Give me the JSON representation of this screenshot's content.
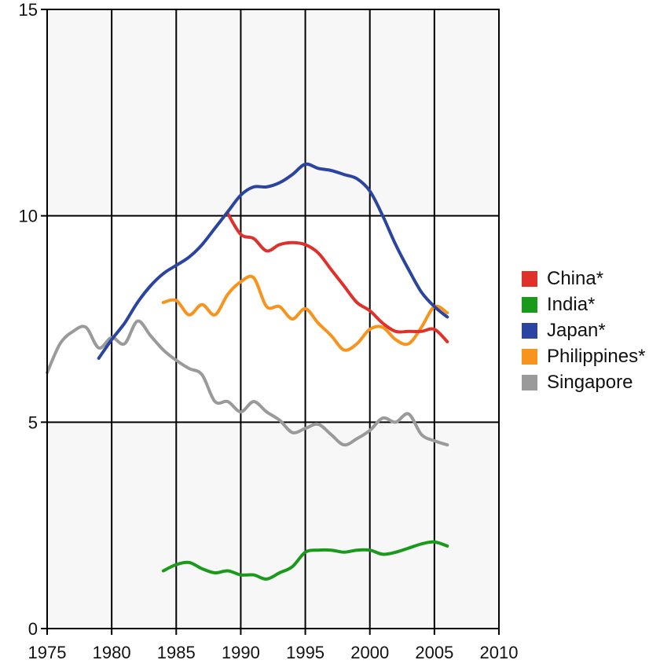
{
  "chart_data": {
    "type": "line",
    "xlim": [
      1975,
      2010
    ],
    "ylim": [
      0,
      15
    ],
    "x_ticks": [
      "1975",
      "1980",
      "1985",
      "1990",
      "1995",
      "2000",
      "2005",
      "2010"
    ],
    "y_ticks": [
      "0",
      "5",
      "10",
      "15"
    ],
    "grid": true,
    "legend_position": "right",
    "series": [
      {
        "name": "China*",
        "color": "#e0302a",
        "x": [
          1989,
          1990,
          1991,
          1992,
          1993,
          1994,
          1995,
          1996,
          1997,
          1998,
          1999,
          2000,
          2001,
          2002,
          2003,
          2004,
          2005,
          2006
        ],
        "y": [
          10.05,
          9.55,
          9.45,
          9.15,
          9.3,
          9.35,
          9.3,
          9.1,
          8.7,
          8.3,
          7.9,
          7.7,
          7.4,
          7.2,
          7.2,
          7.2,
          7.25,
          6.95
        ]
      },
      {
        "name": "India*",
        "color": "#1a9a1a",
        "x": [
          1984,
          1985,
          1986,
          1987,
          1988,
          1989,
          1990,
          1991,
          1992,
          1993,
          1994,
          1995,
          1996,
          1997,
          1998,
          1999,
          2000,
          2001,
          2002,
          2003,
          2004,
          2005,
          2006
        ],
        "y": [
          1.4,
          1.55,
          1.6,
          1.45,
          1.35,
          1.4,
          1.3,
          1.3,
          1.2,
          1.35,
          1.5,
          1.85,
          1.9,
          1.9,
          1.85,
          1.9,
          1.9,
          1.8,
          1.85,
          1.95,
          2.05,
          2.1,
          2.0
        ]
      },
      {
        "name": "Japan*",
        "color": "#2a44a0",
        "x": [
          1979,
          1980,
          1981,
          1982,
          1983,
          1984,
          1985,
          1986,
          1987,
          1988,
          1989,
          1990,
          1991,
          1992,
          1993,
          1994,
          1995,
          1996,
          1997,
          1998,
          1999,
          2000,
          2001,
          2002,
          2003,
          2004,
          2005,
          2006
        ],
        "y": [
          6.55,
          7.0,
          7.4,
          7.9,
          8.3,
          8.6,
          8.8,
          9.0,
          9.3,
          9.7,
          10.1,
          10.5,
          10.7,
          10.7,
          10.8,
          11.0,
          11.25,
          11.15,
          11.1,
          11.0,
          10.9,
          10.6,
          10.0,
          9.3,
          8.7,
          8.15,
          7.8,
          7.55
        ]
      },
      {
        "name": "Philippines*",
        "color": "#f7941d",
        "x": [
          1984,
          1985,
          1986,
          1987,
          1988,
          1989,
          1990,
          1991,
          1992,
          1993,
          1994,
          1995,
          1996,
          1997,
          1998,
          1999,
          2000,
          2001,
          2002,
          2003,
          2004,
          2005,
          2006
        ],
        "y": [
          7.9,
          7.95,
          7.6,
          7.85,
          7.6,
          8.1,
          8.4,
          8.5,
          7.8,
          7.8,
          7.5,
          7.75,
          7.4,
          7.1,
          6.75,
          6.9,
          7.25,
          7.3,
          7.0,
          6.9,
          7.3,
          7.8,
          7.65
        ]
      },
      {
        "name": "Singapore",
        "color": "#9a9a9a",
        "x": [
          1975,
          1976,
          1977,
          1978,
          1979,
          1980,
          1981,
          1982,
          1983,
          1984,
          1985,
          1986,
          1987,
          1988,
          1989,
          1990,
          1991,
          1992,
          1993,
          1994,
          1995,
          1996,
          1997,
          1998,
          1999,
          2000,
          2001,
          2002,
          2003,
          2004,
          2005,
          2006
        ],
        "y": [
          6.2,
          6.9,
          7.2,
          7.3,
          6.8,
          7.05,
          6.9,
          7.45,
          7.1,
          6.75,
          6.5,
          6.3,
          6.15,
          5.5,
          5.5,
          5.25,
          5.5,
          5.25,
          5.05,
          4.75,
          4.85,
          4.95,
          4.7,
          4.45,
          4.6,
          4.8,
          5.1,
          5.0,
          5.2,
          4.7,
          4.55,
          4.45
        ]
      }
    ]
  }
}
